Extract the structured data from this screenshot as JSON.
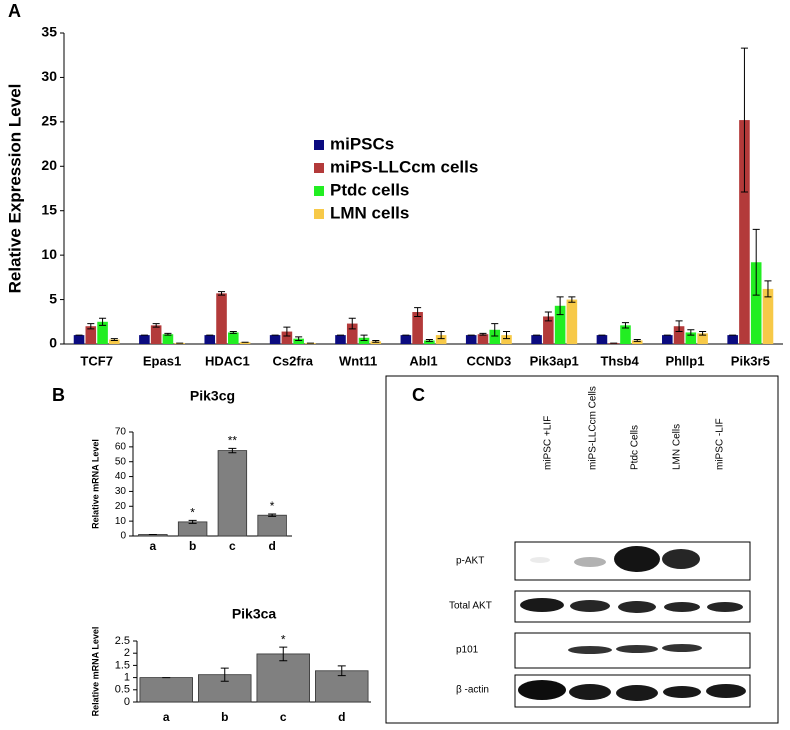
{
  "panel_labels": [
    "A",
    "B",
    "C"
  ],
  "chart_data": [
    {
      "type": "bar",
      "ylabel": "Relative Expression Level",
      "categories": [
        "TCF7",
        "Epas1",
        "HDAC1",
        "Cs2fra",
        "Wnt11",
        "Abl1",
        "CCND3",
        "Pik3ap1",
        "Thsb4",
        "Phllp1",
        "Pik3r5"
      ],
      "series": [
        {
          "name": "miPSCs",
          "color": "#0b0b80",
          "values": [
            1,
            1,
            1,
            1,
            1,
            1,
            1,
            1,
            1,
            1,
            1
          ],
          "errors": [
            0,
            0,
            0,
            0,
            0,
            0,
            0,
            0,
            0,
            0,
            0
          ]
        },
        {
          "name": "miPS-LLCcm cells",
          "color": "#b33a3a",
          "values": [
            2.0,
            2.1,
            5.7,
            1.4,
            2.3,
            3.6,
            1.1,
            3.1,
            0.1,
            2.0,
            25.2
          ],
          "errors": [
            0.3,
            0.2,
            0.2,
            0.5,
            0.6,
            0.5,
            0.1,
            0.5,
            0,
            0.6,
            8.1
          ]
        },
        {
          "name": "Ptdc cells",
          "color": "#22ee22",
          "values": [
            2.5,
            1.1,
            1.3,
            0.6,
            0.7,
            0.4,
            1.6,
            4.3,
            2.1,
            1.3,
            9.2
          ],
          "errors": [
            0.4,
            0.1,
            0.1,
            0.2,
            0.3,
            0.1,
            0.7,
            1.0,
            0.3,
            0.3,
            3.7
          ]
        },
        {
          "name": "LMN cells",
          "color": "#f7c948",
          "values": [
            0.5,
            0.1,
            0.2,
            0.1,
            0.3,
            1.0,
            1.0,
            5.0,
            0.4,
            1.2,
            6.2
          ],
          "errors": [
            0.1,
            0,
            0,
            0,
            0.1,
            0.4,
            0.4,
            0.3,
            0.1,
            0.2,
            0.9
          ]
        }
      ],
      "ylim": [
        0,
        35
      ],
      "yticks": [
        0,
        5,
        10,
        15,
        20,
        25,
        30,
        35
      ],
      "legend": "center"
    },
    {
      "type": "bar",
      "title": "Pik3cg",
      "ylabel": "Relative mRNA Level",
      "color": "#808080",
      "categories": [
        "a",
        "b",
        "c",
        "d"
      ],
      "values": [
        1,
        9.5,
        57.5,
        14
      ],
      "errors": [
        0,
        1,
        1.5,
        0.8
      ],
      "annotations": [
        null,
        "*",
        "**",
        "*"
      ],
      "ylim": [
        0,
        70
      ],
      "yticks": [
        0,
        10,
        20,
        30,
        40,
        50,
        60,
        70
      ]
    },
    {
      "type": "bar",
      "title": "Pik3ca",
      "ylabel": "Relative mRNA Level",
      "color": "#808080",
      "categories": [
        "a",
        "b",
        "c",
        "d"
      ],
      "values": [
        1,
        1.12,
        1.97,
        1.28
      ],
      "errors": [
        0,
        0.27,
        0.28,
        0.2
      ],
      "annotations": [
        null,
        null,
        "*",
        null
      ],
      "ylim": [
        0,
        2.5
      ],
      "yticks": [
        0,
        0.5,
        1,
        1.5,
        2,
        2.5
      ]
    }
  ],
  "blot": {
    "lanes": [
      "miPSC +LIF",
      "miPS-LLCcm Cells",
      "Ptdc Cells",
      "LMN Cells",
      "miPSC -LIF"
    ],
    "rows": [
      "p-AKT",
      "Total AKT",
      "p101",
      "β -actin"
    ]
  }
}
